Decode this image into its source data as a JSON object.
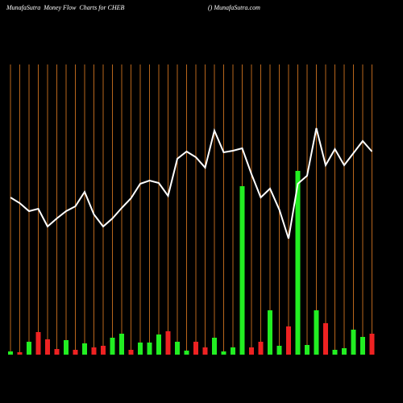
{
  "chart_data": {
    "type": "moneyflow",
    "title": "MunafaSutra  Money Flow  Charts for CHEB",
    "subtitle": "() MunafaSutra.com",
    "categories": [
      null,
      null,
      null,
      null,
      null,
      null,
      null,
      null,
      null,
      null,
      null,
      null,
      null,
      null,
      null,
      null,
      null,
      null,
      null,
      null,
      null,
      null,
      null,
      null,
      null,
      null,
      null,
      null,
      null,
      null,
      null,
      null,
      null,
      null,
      null,
      null,
      null,
      null,
      null,
      null
    ],
    "ylim": [
      0,
      360
    ],
    "grid_color": "#b8661c",
    "line_color": "#ffffff",
    "series": [
      {
        "kind": "bar",
        "values": [
          4,
          3,
          16,
          28,
          19,
          7,
          18,
          6,
          14,
          9,
          11,
          21,
          26,
          6,
          15,
          15,
          25,
          29,
          16,
          5,
          16,
          9,
          21,
          4,
          9,
          209,
          9,
          16,
          55,
          11,
          35,
          228,
          12,
          55,
          39,
          6,
          8,
          31,
          22,
          26
        ],
        "colors": [
          "#22ee22",
          "#ee2222",
          "#22ee22",
          "#ee2222",
          "#ee2222",
          "#ee2222",
          "#22ee22",
          "#ee2222",
          "#22ee22",
          "#ee2222",
          "#ee2222",
          "#22ee22",
          "#22ee22",
          "#ee2222",
          "#22ee22",
          "#22ee22",
          "#22ee22",
          "#ee2222",
          "#22ee22",
          "#22ee22",
          "#ee2222",
          "#ee2222",
          "#22ee22",
          "#22ee22",
          "#22ee22",
          "#22ee22",
          "#ee2222",
          "#ee2222",
          "#22ee22",
          "#22ee22",
          "#ee2222",
          "#22ee22",
          "#22ee22",
          "#22ee22",
          "#ee2222",
          "#22ee22",
          "#22ee22",
          "#22ee22",
          "#22ee22",
          "#ee2222"
        ]
      },
      {
        "kind": "line",
        "values": [
          195,
          188,
          178,
          181,
          159,
          169,
          178,
          184,
          202,
          174,
          159,
          169,
          182,
          194,
          212,
          216,
          213,
          197,
          243,
          252,
          245,
          232,
          278,
          251,
          253,
          256,
          224,
          195,
          206,
          180,
          144,
          212,
          222,
          281,
          235,
          255,
          235,
          250,
          265,
          252
        ]
      }
    ]
  }
}
